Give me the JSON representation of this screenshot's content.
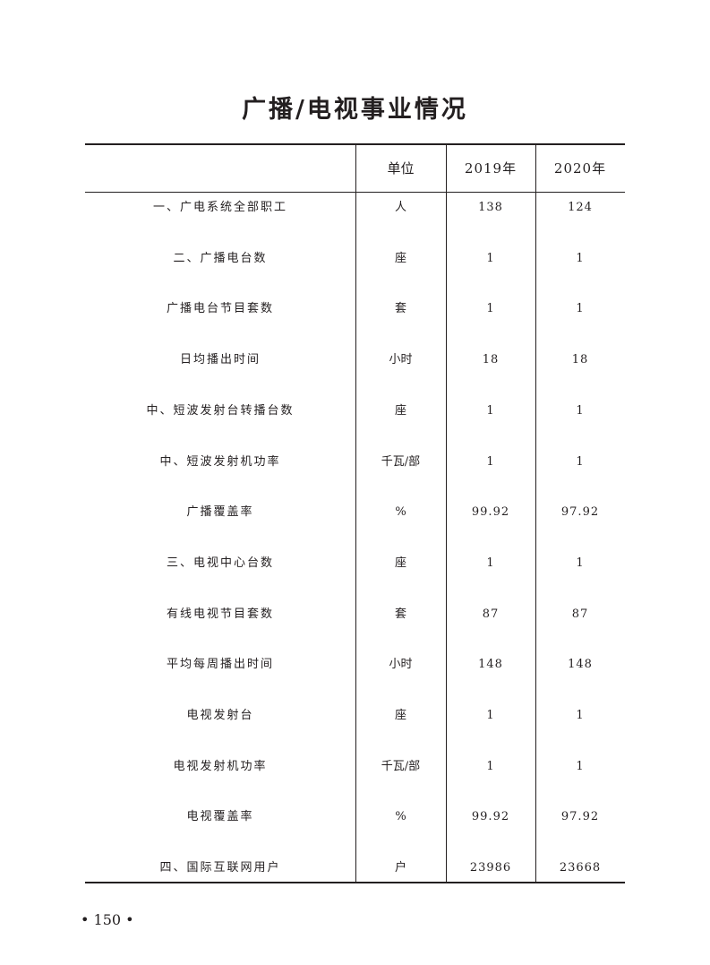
{
  "title": "广播/电视事业情况",
  "table": {
    "headers": [
      "",
      "单位",
      "2019年",
      "2020年"
    ],
    "rows": [
      [
        "一、广电系统全部职工",
        "人",
        "138",
        "124"
      ],
      [
        "二、广播电台数",
        "座",
        "1",
        "1"
      ],
      [
        "广播电台节目套数",
        "套",
        "1",
        "1"
      ],
      [
        "日均播出时间",
        "小时",
        "18",
        "18"
      ],
      [
        "中、短波发射台转播台数",
        "座",
        "1",
        "1"
      ],
      [
        "中、短波发射机功率",
        "千瓦/部",
        "1",
        "1"
      ],
      [
        "广播覆盖率",
        "%",
        "99.92",
        "97.92"
      ],
      [
        "三、电视中心台数",
        "座",
        "1",
        "1"
      ],
      [
        "有线电视节目套数",
        "套",
        "87",
        "87"
      ],
      [
        "平均每周播出时间",
        "小时",
        "148",
        "148"
      ],
      [
        "电视发射台",
        "座",
        "1",
        "1"
      ],
      [
        "电视发射机功率",
        "千瓦/部",
        "1",
        "1"
      ],
      [
        "电视覆盖率",
        "%",
        "99.92",
        "97.92"
      ],
      [
        "四、国际互联网用户",
        "户",
        "23986",
        "23668"
      ]
    ]
  },
  "page_number": "• 150 •"
}
